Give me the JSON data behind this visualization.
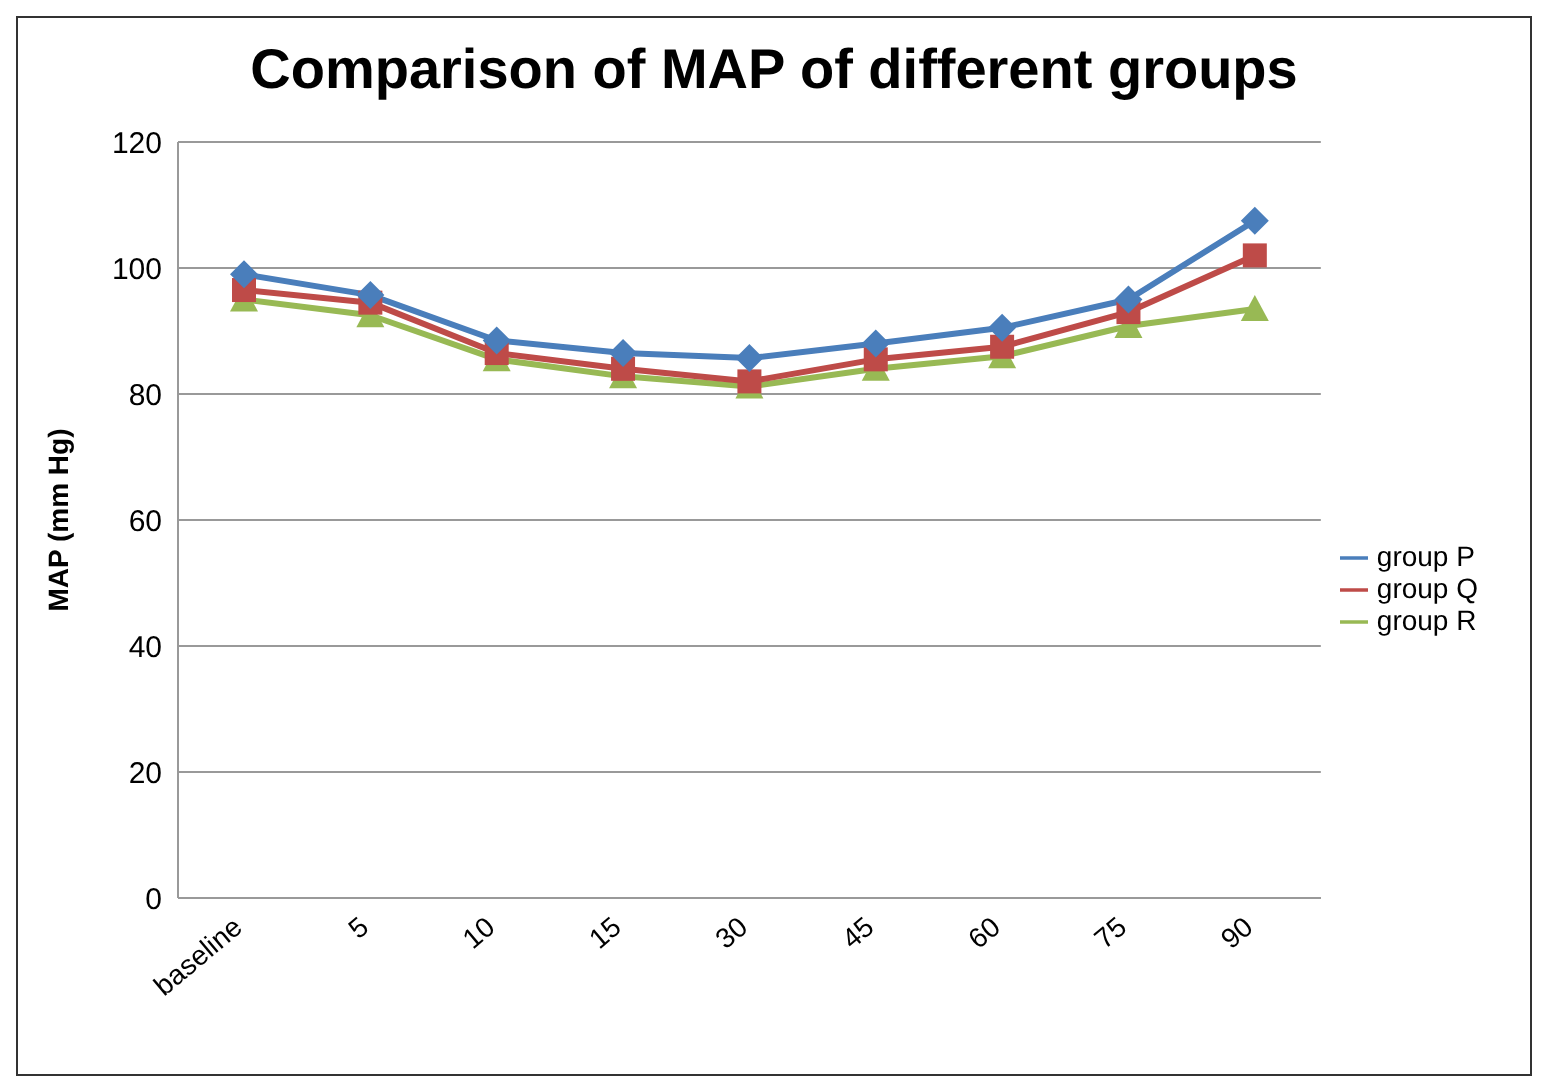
{
  "chart_data": {
    "type": "line",
    "title": "Comparison of MAP of different groups",
    "ylabel": "MAP (mm Hg)",
    "categories": [
      "baseline",
      "5",
      "10",
      "15",
      "30",
      "45",
      "60",
      "75",
      "90"
    ],
    "series": [
      {
        "name": "group P",
        "color": "#4a7ebb",
        "marker": "diamond",
        "values": [
          99,
          95.7,
          88.5,
          86.5,
          85.7,
          88,
          90.5,
          95,
          107.5
        ]
      },
      {
        "name": "group Q",
        "color": "#be4b48",
        "marker": "square",
        "values": [
          96.5,
          94.5,
          86.5,
          84,
          82,
          85.5,
          87.5,
          93,
          102
        ]
      },
      {
        "name": "group R",
        "color": "#98b954",
        "marker": "triangle",
        "values": [
          95,
          92.5,
          85.5,
          82.8,
          81.2,
          84,
          86,
          90.8,
          93.5
        ]
      }
    ],
    "ylim": [
      0,
      120
    ],
    "yticks": [
      0,
      20,
      40,
      60,
      80,
      100,
      120
    ],
    "grid": "y",
    "legend": "right"
  }
}
